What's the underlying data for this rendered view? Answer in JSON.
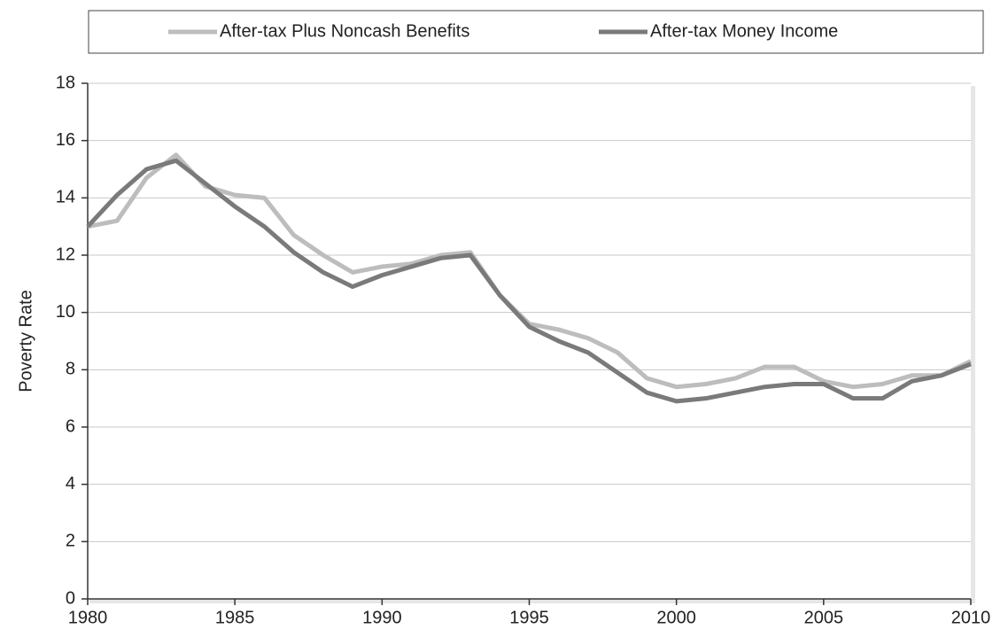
{
  "chart_data": {
    "type": "line",
    "ylabel": "Poverty Rate",
    "x": [
      1980,
      1981,
      1982,
      1983,
      1984,
      1985,
      1986,
      1987,
      1988,
      1989,
      1990,
      1991,
      1992,
      1993,
      1994,
      1995,
      1996,
      1997,
      1998,
      1999,
      2000,
      2001,
      2002,
      2003,
      2004,
      2005,
      2006,
      2007,
      2008,
      2009,
      2010
    ],
    "series": [
      {
        "name": "After-tax Plus Noncash Benefits",
        "color": "#bdbdbd",
        "values": [
          13.0,
          13.2,
          14.7,
          15.5,
          14.4,
          14.1,
          14.0,
          12.7,
          12.0,
          11.4,
          11.6,
          11.7,
          12.0,
          12.1,
          10.6,
          9.6,
          9.4,
          9.1,
          8.6,
          7.7,
          7.4,
          7.5,
          7.7,
          8.1,
          8.1,
          7.6,
          7.4,
          7.5,
          7.8,
          7.8,
          8.3
        ]
      },
      {
        "name": "After-tax Money Income",
        "color": "#7a7a7a",
        "values": [
          13.0,
          14.1,
          15.0,
          15.3,
          14.5,
          13.7,
          13.0,
          12.1,
          11.4,
          10.9,
          11.3,
          11.6,
          11.9,
          12.0,
          10.6,
          9.5,
          9.0,
          8.6,
          7.9,
          7.2,
          6.9,
          7.0,
          7.2,
          7.4,
          7.5,
          7.5,
          7.0,
          7.0,
          7.6,
          7.8,
          8.2
        ]
      }
    ],
    "xlim": [
      1980,
      2010
    ],
    "xticks": [
      1980,
      1985,
      1990,
      1995,
      2000,
      2005,
      2010
    ],
    "ylim": [
      0,
      18
    ],
    "yticks": [
      0,
      2,
      4,
      6,
      8,
      10,
      12,
      14,
      16,
      18
    ],
    "grid": true,
    "legend": "top"
  }
}
